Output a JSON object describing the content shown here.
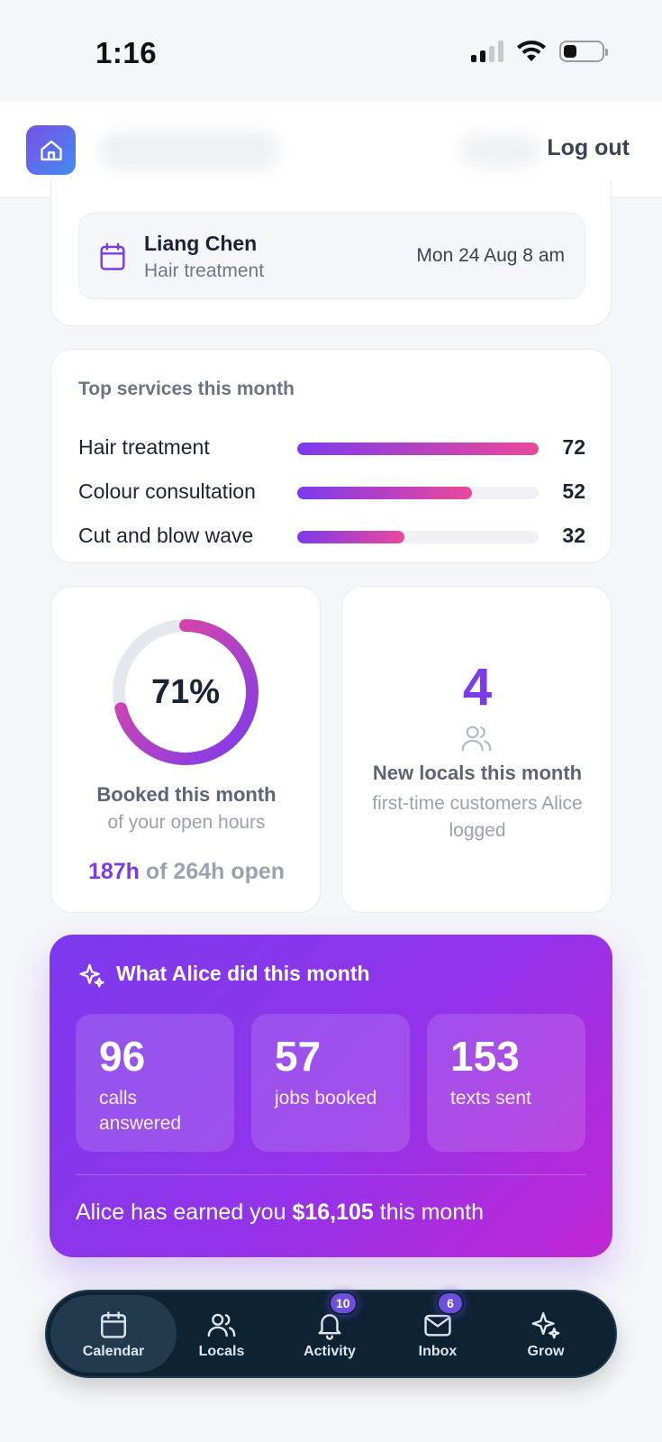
{
  "status_bar": {
    "time": "1:16"
  },
  "header": {
    "logout_label": "Log out"
  },
  "appointment": {
    "name": "Liang Chen",
    "service": "Hair treatment",
    "time": "Mon 24 Aug 8 am"
  },
  "top_services": {
    "title": "Top services this month",
    "max": 72,
    "items": [
      {
        "name": "Hair treatment",
        "count": 72
      },
      {
        "name": "Colour consultation",
        "count": 52
      },
      {
        "name": "Cut and blow wave",
        "count": 32
      }
    ]
  },
  "booked": {
    "percent": 71,
    "percent_label": "71%",
    "title": "Booked this month",
    "subtitle": "of your open hours",
    "hours_booked": "187h",
    "hours_total": "of 264h open"
  },
  "new_locals": {
    "count": "4",
    "title": "New locals this month",
    "subtitle": "first-time customers Alice logged"
  },
  "alice": {
    "title": "What Alice did this month",
    "stats": [
      {
        "value": "96",
        "label": "calls answered"
      },
      {
        "value": "57",
        "label": "jobs booked"
      },
      {
        "value": "153",
        "label": "texts sent"
      }
    ],
    "earned_prefix": "Alice has earned you ",
    "earned_amount": "$16,105",
    "earned_suffix": " this month"
  },
  "nav": {
    "items": [
      {
        "label": "Calendar",
        "icon": "calendar-icon",
        "active": true
      },
      {
        "label": "Locals",
        "icon": "users-icon"
      },
      {
        "label": "Activity",
        "icon": "bell-icon",
        "badge": "10"
      },
      {
        "label": "Inbox",
        "icon": "mail-icon",
        "badge": "6"
      },
      {
        "label": "Grow",
        "icon": "sparkle-icon"
      }
    ]
  },
  "colors": {
    "accent": "#7c3aed",
    "gradient_end": "#ec4899",
    "nav_bg": "#0d2233"
  }
}
